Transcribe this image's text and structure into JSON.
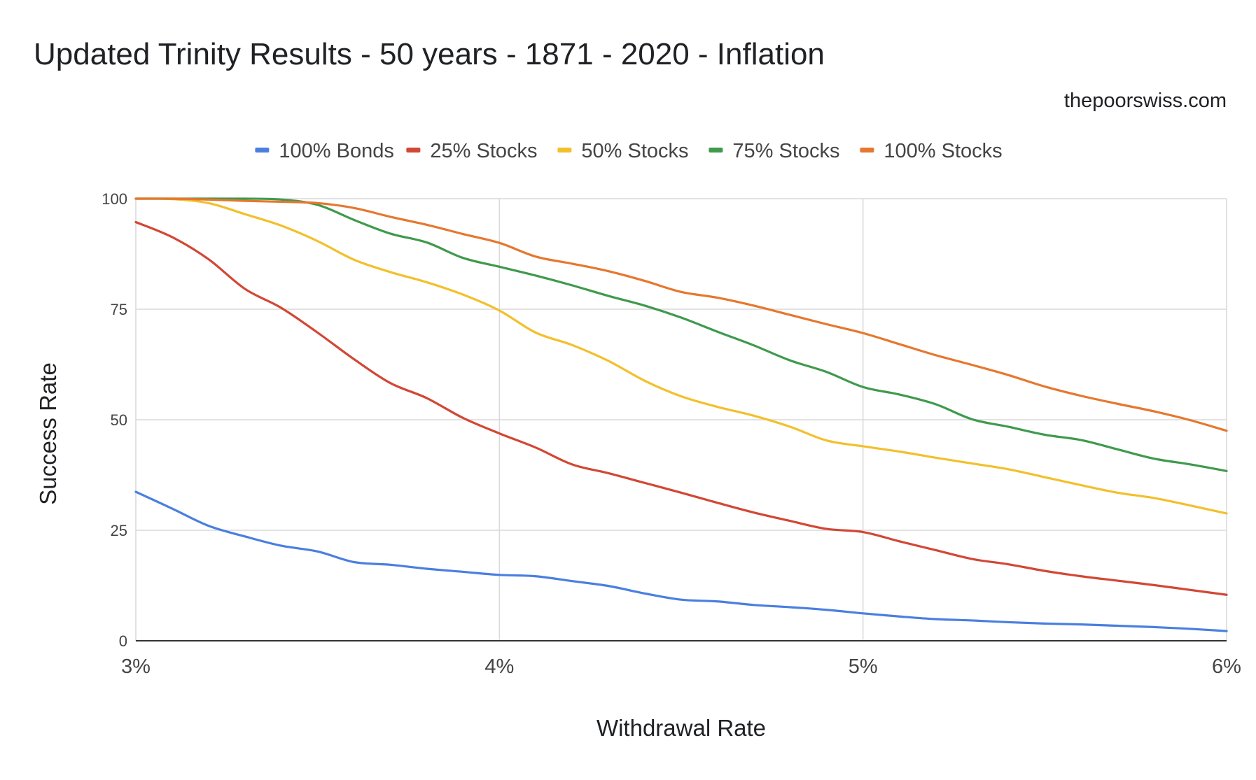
{
  "site_credit": "thepoorswiss.com",
  "chart_data": {
    "type": "line",
    "title": "Updated Trinity Results - 50 years - 1871 - 2020 - Inflation",
    "xlabel": "Withdrawal Rate",
    "ylabel": "Success Rate",
    "xlim": [
      3,
      6
    ],
    "ylim": [
      0,
      100
    ],
    "x_ticks": [
      3,
      4,
      5,
      6
    ],
    "x_tick_labels": [
      "3%",
      "4%",
      "5%",
      "6%"
    ],
    "y_ticks": [
      0,
      25,
      50,
      75,
      100
    ],
    "y_tick_labels": [
      "0",
      "25",
      "50",
      "75",
      "100"
    ],
    "grid": true,
    "legend_position": "top",
    "x": [
      3.0,
      3.1,
      3.2,
      3.3,
      3.4,
      3.5,
      3.6,
      3.7,
      3.8,
      3.9,
      4.0,
      4.1,
      4.2,
      4.3,
      4.4,
      4.5,
      4.6,
      4.7,
      4.8,
      4.9,
      5.0,
      5.1,
      5.2,
      5.3,
      5.4,
      5.5,
      5.6,
      5.7,
      5.8,
      5.9,
      6.0
    ],
    "series": [
      {
        "name": "100% Bonds",
        "color": "#4a7fe0",
        "values": [
          33.7,
          29.9,
          26.0,
          23.6,
          21.5,
          20.2,
          17.8,
          17.2,
          16.3,
          15.6,
          14.9,
          14.6,
          13.5,
          12.4,
          10.7,
          9.3,
          8.9,
          8.1,
          7.6,
          7.0,
          6.2,
          5.5,
          4.9,
          4.6,
          4.2,
          3.9,
          3.7,
          3.4,
          3.1,
          2.7,
          2.2
        ]
      },
      {
        "name": "25% Stocks",
        "color": "#d24735",
        "values": [
          94.7,
          91.3,
          86.3,
          79.6,
          75.3,
          69.7,
          63.7,
          58.3,
          54.9,
          50.4,
          46.9,
          43.7,
          39.9,
          37.9,
          35.7,
          33.5,
          31.2,
          29.0,
          27.1,
          25.3,
          24.6,
          22.5,
          20.5,
          18.5,
          17.3,
          15.8,
          14.6,
          13.6,
          12.6,
          11.5,
          10.4
        ]
      },
      {
        "name": "50% Stocks",
        "color": "#f2c02c",
        "values": [
          100,
          99.9,
          99.0,
          96.5,
          93.9,
          90.4,
          86.2,
          83.4,
          81.1,
          78.3,
          74.7,
          69.7,
          66.9,
          63.3,
          58.8,
          55.3,
          52.9,
          50.9,
          48.4,
          45.3,
          44.0,
          42.8,
          41.4,
          40.1,
          38.8,
          37.0,
          35.2,
          33.5,
          32.3,
          30.6,
          28.8
        ]
      },
      {
        "name": "75% Stocks",
        "color": "#3f9a4d",
        "values": [
          100,
          100,
          100,
          100,
          99.8,
          98.6,
          95.2,
          92.1,
          90.1,
          86.6,
          84.6,
          82.6,
          80.4,
          78.0,
          75.8,
          73.1,
          69.9,
          66.8,
          63.4,
          60.8,
          57.4,
          55.7,
          53.5,
          50.1,
          48.4,
          46.6,
          45.4,
          43.3,
          41.2,
          39.9,
          38.4
        ]
      },
      {
        "name": "100% Stocks",
        "color": "#e6772e",
        "values": [
          100,
          100,
          99.8,
          99.5,
          99.3,
          99.0,
          97.9,
          95.9,
          94.1,
          92.0,
          90.0,
          86.9,
          85.3,
          83.6,
          81.4,
          78.9,
          77.6,
          75.8,
          73.7,
          71.6,
          69.6,
          67.1,
          64.6,
          62.4,
          60.1,
          57.5,
          55.4,
          53.6,
          51.9,
          49.9,
          47.5
        ]
      }
    ]
  }
}
